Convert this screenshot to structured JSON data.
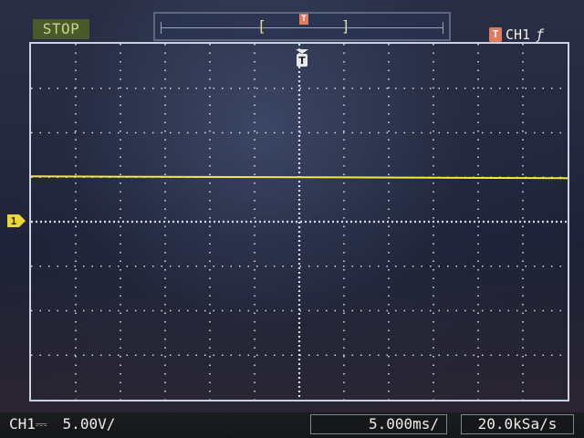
{
  "status": {
    "run_state": "STOP"
  },
  "memory_bar": {
    "left_bracket": "[",
    "right_bracket": "]",
    "trigger_icon": "T"
  },
  "trigger": {
    "icon": "T",
    "source": "CH1",
    "edge_icon": "rising-edge-icon",
    "edge_glyph": "ƒ",
    "marker_icon": "T",
    "color": "#e07c5e"
  },
  "graticule": {
    "divisions_x": 12,
    "divisions_y": 8,
    "grid_color": "#d7dcea"
  },
  "channel1": {
    "marker_label": "1",
    "trace_color": "#f2ea3a",
    "trace_level_divisions": 1.0,
    "ground_level_division": 4.0
  },
  "bottom": {
    "channel_name": "CH1",
    "coupling_glyph": "⎓",
    "volts_per_div": "5.00V/",
    "timebase": "5.000ms/",
    "sample_rate": "20.0kSa/s"
  }
}
